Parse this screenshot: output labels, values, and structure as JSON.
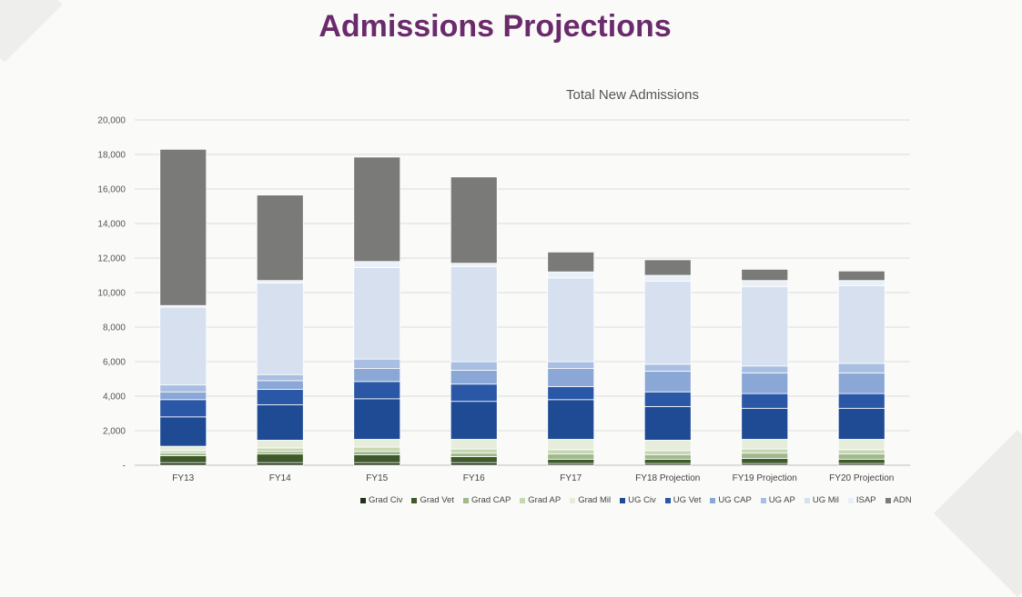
{
  "page": {
    "title": "Admissions Projections"
  },
  "chart_data": {
    "type": "bar",
    "stacked": true,
    "title": "Total New Admissions",
    "xlabel": "",
    "ylabel": "",
    "ylim": [
      0,
      20000
    ],
    "yticks": [
      "-",
      "2,000",
      "4,000",
      "6,000",
      "8,000",
      "10,000",
      "12,000",
      "14,000",
      "16,000",
      "18,000",
      "20,000"
    ],
    "grid": true,
    "legend_position": "bottom",
    "categories": [
      "FY13",
      "FY14",
      "FY15",
      "FY16",
      "FY17",
      "FY18 Projection",
      "FY19 Projection",
      "FY20 Projection"
    ],
    "series": [
      {
        "name": "Grad Civ",
        "color": "#23311c",
        "values": [
          150,
          150,
          150,
          150,
          100,
          100,
          100,
          100
        ]
      },
      {
        "name": "Grad Vet",
        "color": "#3f5a2a",
        "values": [
          400,
          500,
          450,
          350,
          250,
          250,
          300,
          250
        ]
      },
      {
        "name": "Grad CAP",
        "color": "#9fb88c",
        "values": [
          150,
          150,
          200,
          200,
          300,
          250,
          300,
          300
        ]
      },
      {
        "name": "Grad AP",
        "color": "#c6d8b2",
        "values": [
          150,
          200,
          250,
          250,
          250,
          250,
          250,
          250
        ]
      },
      {
        "name": "Grad Mil",
        "color": "#e6eedb",
        "values": [
          250,
          450,
          450,
          550,
          600,
          600,
          550,
          600
        ]
      },
      {
        "name": "UG Civ",
        "color": "#1f4a94",
        "values": [
          1700,
          2050,
          2350,
          2200,
          2300,
          1950,
          1800,
          1800
        ]
      },
      {
        "name": "UG Vet",
        "color": "#2a58a6",
        "values": [
          1000,
          900,
          1000,
          1000,
          750,
          850,
          850,
          850
        ]
      },
      {
        "name": "UG CAP",
        "color": "#8aa7d6",
        "values": [
          450,
          500,
          750,
          800,
          1050,
          1200,
          1200,
          1200
        ]
      },
      {
        "name": "UG AP",
        "color": "#a9bfe2",
        "values": [
          400,
          350,
          550,
          500,
          400,
          400,
          400,
          550
        ]
      },
      {
        "name": "UG Mil",
        "color": "#d6e0ef",
        "values": [
          4500,
          5300,
          5300,
          5500,
          4850,
          4800,
          4600,
          4500
        ]
      },
      {
        "name": "ISAP",
        "color": "#eaf0f8",
        "values": [
          100,
          150,
          350,
          200,
          350,
          350,
          350,
          300
        ]
      },
      {
        "name": "ADN",
        "color": "#7a7b79",
        "values": [
          9050,
          4950,
          6050,
          5000,
          1150,
          900,
          650,
          550
        ]
      }
    ]
  }
}
